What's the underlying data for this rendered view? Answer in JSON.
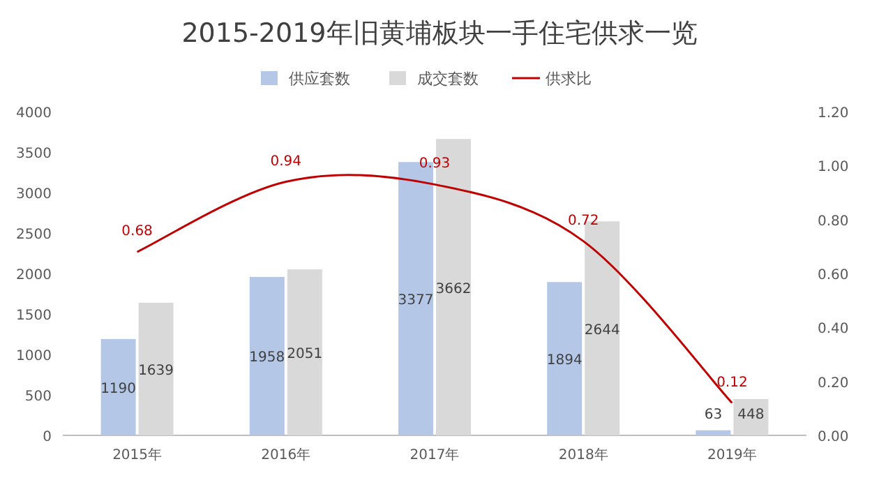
{
  "chart_data": {
    "type": "bar",
    "title": "2015-2019年旧黄埔板块一手住宅供求一览",
    "categories": [
      "2015年",
      "2016年",
      "2017年",
      "2018年",
      "2019年"
    ],
    "series": [
      {
        "name": "供应套数",
        "color": "#b4c7e7",
        "values": [
          1190,
          1958,
          3377,
          1894,
          63
        ]
      },
      {
        "name": "成交套数",
        "color": "#d9d9d9",
        "values": [
          1639,
          2051,
          3662,
          2644,
          448
        ]
      },
      {
        "name": "供求比",
        "type": "line",
        "axis": "y2",
        "color": "#c00000",
        "values": [
          0.68,
          0.94,
          0.93,
          0.72,
          0.12
        ]
      }
    ],
    "ylim": [
      0,
      4000
    ],
    "yticks": [
      0,
      500,
      1000,
      1500,
      2000,
      2500,
      3000,
      3500,
      4000
    ],
    "y2lim": [
      0,
      1.2
    ],
    "y2ticks": [
      {
        "value": 0,
        "label": "0.00"
      },
      {
        "value": 0.2,
        "label": "0.20"
      },
      {
        "value": 0.4,
        "label": "0.40"
      },
      {
        "value": 0.6,
        "label": "0.60"
      },
      {
        "value": 0.8,
        "label": "0.80"
      },
      {
        "value": 1,
        "label": "1.00"
      },
      {
        "value": 1.2,
        "label": "1.20"
      }
    ],
    "legend": "top",
    "data_labels": true
  }
}
